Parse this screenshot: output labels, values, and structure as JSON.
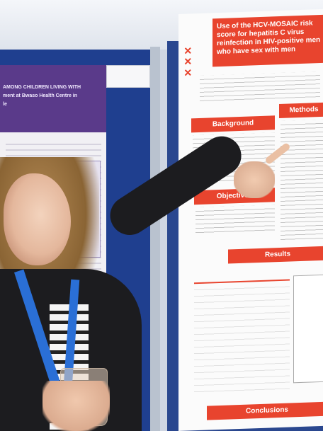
{
  "poster_right": {
    "title": "Use of the HCV-MOSAIC risk score for hepatitis C virus reinfection in HIV-positive men who have sex with men",
    "sections": {
      "background": "Background",
      "methods": "Methods",
      "objectives": "Objectives",
      "results": "Results",
      "conclusions": "Conclusions"
    }
  },
  "poster_left": {
    "title_line1": "AMONG CHILDREN LIVING WITH",
    "title_line2": "ment at Bwaso Health Centre in",
    "title_line3": "le"
  },
  "colors": {
    "poster_red": "#e8442e",
    "board_blue": "#2a478f",
    "lanyard_blue": "#2a6fd6"
  }
}
